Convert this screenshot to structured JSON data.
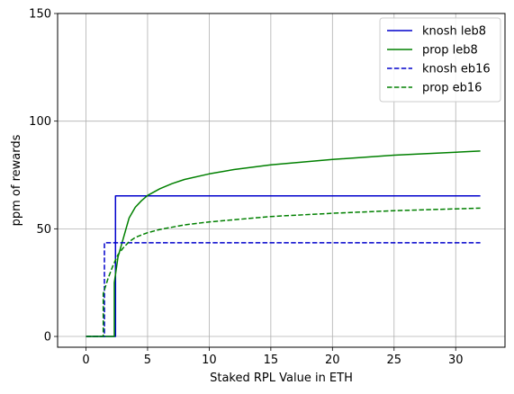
{
  "chart_data": {
    "type": "line",
    "xlabel": "Staked RPL Value in ETH",
    "ylabel": "ppm of rewards",
    "xlim": [
      -2.3,
      34.0
    ],
    "ylim": [
      -5,
      150
    ],
    "xticks": [
      0,
      5,
      10,
      15,
      20,
      25,
      30
    ],
    "yticks": [
      0,
      50,
      100,
      150
    ],
    "grid": true,
    "legend": "top-right",
    "series": [
      {
        "name": "knosh leb8",
        "color": "#0000cc",
        "dash": "solid",
        "points": [
          [
            0,
            0
          ],
          [
            2.4,
            0
          ],
          [
            2.4,
            65.3
          ],
          [
            32,
            65.3
          ]
        ]
      },
      {
        "name": "prop leb8",
        "color": "#008000",
        "dash": "solid",
        "points": [
          [
            0,
            0
          ],
          [
            2.3,
            0
          ],
          [
            2.3,
            25
          ],
          [
            2.6,
            37
          ],
          [
            3.0,
            45
          ],
          [
            3.5,
            55
          ],
          [
            4.0,
            60
          ],
          [
            4.5,
            63
          ],
          [
            5,
            65.5
          ],
          [
            6,
            68.6
          ],
          [
            7,
            71
          ],
          [
            8,
            72.9
          ],
          [
            10,
            75.5
          ],
          [
            12,
            77.5
          ],
          [
            15,
            79.7
          ],
          [
            20,
            82.2
          ],
          [
            25,
            84.2
          ],
          [
            32,
            86.1
          ]
        ]
      },
      {
        "name": "knosh eb16",
        "color": "#0000cc",
        "dash": "dashed",
        "points": [
          [
            0,
            0
          ],
          [
            1.5,
            0
          ],
          [
            1.5,
            43.5
          ],
          [
            32,
            43.5
          ]
        ]
      },
      {
        "name": "prop eb16",
        "color": "#008000",
        "dash": "dashed",
        "points": [
          [
            0,
            0
          ],
          [
            1.4,
            0
          ],
          [
            1.4,
            20
          ],
          [
            1.8,
            27
          ],
          [
            2.2,
            33
          ],
          [
            2.6,
            38
          ],
          [
            3,
            41
          ],
          [
            3.5,
            44
          ],
          [
            4,
            46
          ],
          [
            5,
            48.2
          ],
          [
            6,
            49.7
          ],
          [
            8,
            51.8
          ],
          [
            10,
            53.2
          ],
          [
            15,
            55.7
          ],
          [
            20,
            57.2
          ],
          [
            25,
            58.4
          ],
          [
            32,
            59.6
          ]
        ]
      }
    ]
  }
}
